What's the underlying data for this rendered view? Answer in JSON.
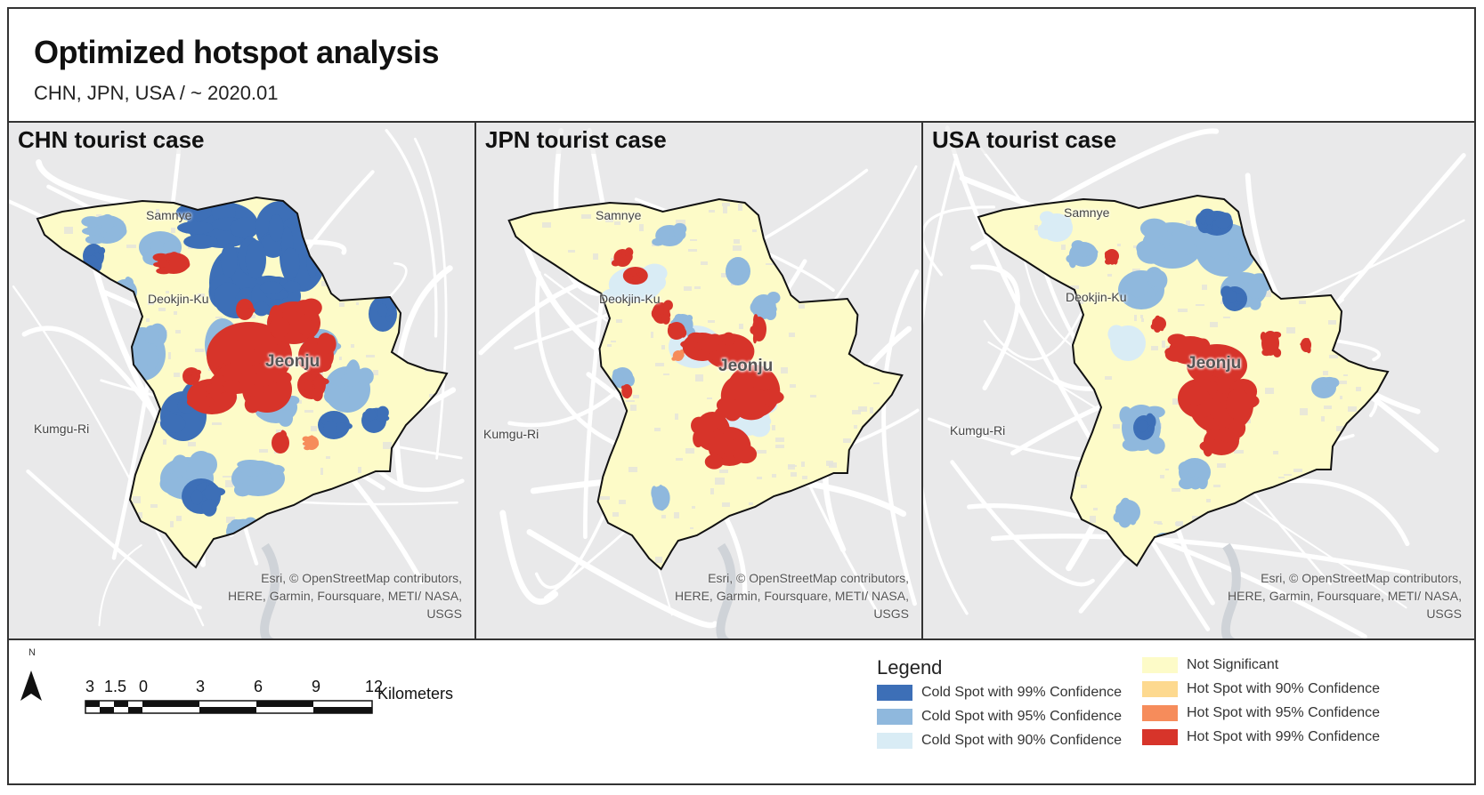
{
  "map": {
    "title": "Optimized hotspot analysis",
    "subtitle": "CHN, JPN, USA / ~ 2020.01",
    "colors": {
      "background": "#e9e9ea",
      "road": "#ffffff",
      "boundary": "#111111",
      "not_significant": "#fdfbc8",
      "cold99": "#3d6fb7",
      "cold95": "#8fb8dd",
      "cold90": "#d9ecf5",
      "hot90": "#fdd98f",
      "hot95": "#f68c5b",
      "hot99": "#d7342a"
    },
    "panels": [
      {
        "title": "CHN tourist case",
        "places": {
          "samnye": "Samnye",
          "deokjin": "Deokjin-Ku",
          "jeonju": "Jeonju",
          "kumgu": "Kumgu-Ri"
        },
        "credit": "Esri, © OpenStreetMap contributors, HERE, Garmin, Foursquare, METI/ NASA, USGS"
      },
      {
        "title": "JPN tourist case",
        "places": {
          "samnye": "Samnye",
          "deokjin": "Deokjin-Ku",
          "jeonju": "Jeonju",
          "kumgu": "Kumgu-Ri"
        },
        "credit": "Esri, © OpenStreetMap contributors, HERE, Garmin, Foursquare, METI/ NASA, USGS"
      },
      {
        "title": "USA tourist case",
        "places": {
          "samnye": "Samnye",
          "deokjin": "Deokjin-Ku",
          "jeonju": "Jeonju",
          "kumgu": "Kumgu-Ri"
        },
        "credit": "Esri, © OpenStreetMap contributors, HERE, Garmin, Foursquare, METI/ NASA, USGS"
      }
    ],
    "north_label": "N",
    "scale": {
      "ticks": [
        "3",
        "1.5",
        "0",
        "3",
        "6",
        "9",
        "12"
      ],
      "unit": "Kilometers"
    },
    "legend": {
      "title": "Legend",
      "items": [
        {
          "label": "Cold Spot with 99% Confidence",
          "color": "#3d6fb7"
        },
        {
          "label": "Cold Spot with 95% Confidence",
          "color": "#8fb8dd"
        },
        {
          "label": "Cold Spot with 90% Confidence",
          "color": "#d9ecf5"
        },
        {
          "label": "Not Significant",
          "color": "#fdfbc8"
        },
        {
          "label": "Hot Spot with 90% Confidence",
          "color": "#fdd98f"
        },
        {
          "label": "Hot Spot with 95% Confidence",
          "color": "#f68c5b"
        },
        {
          "label": "Hot Spot with 99% Confidence",
          "color": "#d7342a"
        }
      ]
    }
  }
}
